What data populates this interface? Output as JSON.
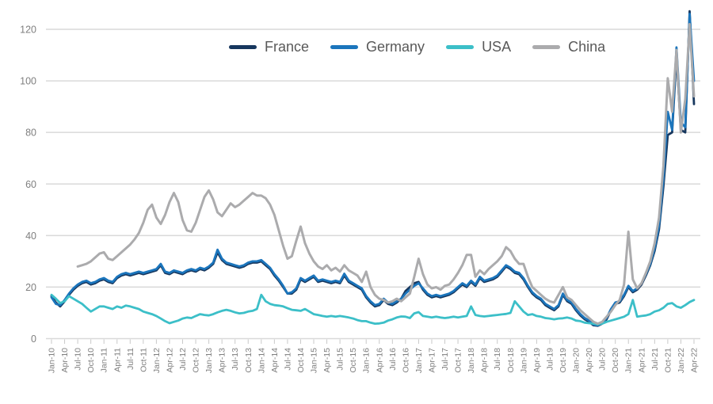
{
  "chart_data": {
    "type": "line",
    "title": "",
    "xlabel": "",
    "ylabel": "",
    "x_unit": "monthly, Jan-2010 through Apr-2022",
    "ylim": [
      0,
      130
    ],
    "yticks": [
      0,
      20,
      40,
      60,
      80,
      100,
      120
    ],
    "grid": "horizontal",
    "legend_position": "top-center",
    "x_tick_labels": [
      "Jan-10",
      "Apr-10",
      "Jul-10",
      "Oct-10",
      "Jan-11",
      "Apr-11",
      "Jul-11",
      "Oct-11",
      "Jan-12",
      "Apr-12",
      "Jul-12",
      "Oct-12",
      "Jan-13",
      "Apr-13",
      "Jul-13",
      "Oct-13",
      "Jan-14",
      "Apr-14",
      "Jul-14",
      "Oct-14",
      "Jan-15",
      "Apr-15",
      "Jul-15",
      "Oct-15",
      "Jan-16",
      "Apr-16",
      "Jul-16",
      "Oct-16",
      "Jan-17",
      "Apr-17",
      "Jul-17",
      "Oct-17",
      "Jan-18",
      "Apr-18",
      "Jul-18",
      "Oct-18",
      "Jan-19",
      "Apr-19",
      "Jul-19",
      "Oct-19",
      "Jan-20",
      "Apr-20",
      "Jul-20",
      "Oct-20",
      "Jan-21",
      "Apr-21",
      "Jul-21",
      "Oct-21",
      "Jan-22",
      "Apr-22"
    ],
    "series": [
      {
        "name": "France",
        "color": "#17375e",
        "values": [
          16.5,
          14,
          12.5,
          14.5,
          17,
          19,
          20.5,
          21.5,
          22,
          21,
          21.5,
          22.5,
          23,
          22,
          21.5,
          23.5,
          24.5,
          25,
          24.5,
          25,
          25.5,
          25,
          25.5,
          26,
          26.5,
          28.5,
          25.5,
          25,
          26,
          25.5,
          25,
          26,
          26.5,
          26,
          27,
          26.5,
          27.5,
          29,
          33.5,
          30.5,
          29,
          28.5,
          28,
          27.5,
          28,
          29,
          29.5,
          29.5,
          30,
          28.5,
          27,
          24.5,
          22.5,
          20,
          17.5,
          17.5,
          19,
          23,
          22,
          23,
          24,
          22,
          22.5,
          22,
          21.5,
          22,
          21.5,
          24.5,
          22,
          21,
          20,
          19,
          16,
          14,
          12.5,
          13,
          15,
          13.5,
          13,
          14,
          15.5,
          18.5,
          20,
          21.5,
          22,
          19,
          17,
          16,
          16.5,
          16,
          16.5,
          17,
          18,
          19.5,
          21,
          20,
          22,
          20.5,
          23.5,
          22,
          22.5,
          23,
          24,
          26,
          28,
          27,
          25.5,
          25,
          23,
          20,
          17.5,
          16,
          15,
          13,
          12,
          11,
          12.5,
          17,
          14.5,
          13.5,
          11,
          9,
          7.5,
          6.5,
          5.2,
          5,
          5.8,
          7.5,
          11,
          13.5,
          14,
          16.5,
          20,
          18,
          19,
          21,
          24.5,
          28.5,
          34,
          42.5,
          59,
          79,
          80,
          110,
          81,
          80,
          127,
          91
        ]
      },
      {
        "name": "Germany",
        "color": "#1b75bc",
        "values": [
          16,
          13.5,
          13,
          15,
          17.5,
          19.5,
          21,
          22,
          22.5,
          21.5,
          22,
          23,
          23.5,
          22.5,
          22,
          24,
          25,
          25.5,
          25,
          25.5,
          26,
          25.5,
          26,
          26.5,
          27,
          29,
          26,
          25.5,
          26.5,
          26,
          25.5,
          26.5,
          27,
          26.5,
          27.5,
          27,
          28,
          29.5,
          34.5,
          31,
          29.5,
          29,
          28.5,
          28,
          28.5,
          29.5,
          30,
          30,
          30.5,
          29,
          27.5,
          25,
          23,
          20.5,
          17.5,
          18,
          19.5,
          23.5,
          22.5,
          23.5,
          24.5,
          22.5,
          23,
          22.5,
          22,
          22.5,
          22,
          25.2,
          22.5,
          21.5,
          20.5,
          19.5,
          16.5,
          14.5,
          13,
          13.5,
          15.5,
          14,
          13.5,
          14.5,
          15.5,
          17.5,
          19,
          20.5,
          21.5,
          19.5,
          17.5,
          16.5,
          17,
          16.5,
          17,
          17.5,
          18.5,
          20,
          21.5,
          20.5,
          22.5,
          21,
          24,
          22.5,
          23,
          23.5,
          24.5,
          26.5,
          28.5,
          27.5,
          26,
          25.5,
          23.5,
          20.5,
          18,
          16.5,
          15.5,
          13.5,
          12.5,
          11.5,
          13,
          17.5,
          15,
          14,
          11.5,
          9.5,
          8,
          7,
          5.5,
          5.2,
          6,
          8,
          11.5,
          14,
          14.5,
          17,
          20.5,
          18.5,
          19.5,
          21.5,
          25,
          29,
          35,
          44,
          62,
          88,
          81,
          113,
          84,
          82,
          126,
          100
        ]
      },
      {
        "name": "USA",
        "color": "#3cbfc8",
        "values": [
          17,
          15.5,
          13.8,
          14.5,
          16.5,
          15.5,
          14.5,
          13.5,
          12,
          10.5,
          11.5,
          12.5,
          12.5,
          12,
          11.5,
          12.5,
          12,
          12.8,
          12.5,
          12,
          11.5,
          10.5,
          10,
          9.5,
          8.8,
          7.8,
          6.8,
          6,
          6.5,
          7,
          7.8,
          8.2,
          8,
          8.8,
          9.5,
          9.2,
          9,
          9.5,
          10.2,
          10.8,
          11.2,
          10.8,
          10.2,
          9.8,
          10,
          10.5,
          10.8,
          11.5,
          17,
          14.5,
          13.5,
          13,
          12.8,
          12.5,
          11.8,
          11.2,
          11,
          10.8,
          11.5,
          10.5,
          9.5,
          9.2,
          8.8,
          8.5,
          8.8,
          8.5,
          8.8,
          8.5,
          8.2,
          7.8,
          7.2,
          6.8,
          6.8,
          6.2,
          5.8,
          5.9,
          6.2,
          7,
          7.5,
          8.2,
          8.6,
          8.5,
          8,
          9.8,
          10.3,
          8.8,
          8.5,
          8.2,
          8.5,
          8.2,
          8,
          8.2,
          8.5,
          8.2,
          8.5,
          8.8,
          12.5,
          9.2,
          8.8,
          8.6,
          8.8,
          9,
          9.2,
          9.4,
          9.6,
          10,
          14.5,
          12.5,
          10.5,
          9.2,
          9.5,
          8.8,
          8.5,
          8,
          7.8,
          7.5,
          7.8,
          7.9,
          8.2,
          7.8,
          7,
          6.8,
          6.2,
          6,
          5.8,
          5.5,
          5.8,
          6.5,
          7,
          7.5,
          8,
          8.5,
          9.5,
          15,
          8.5,
          8.8,
          9,
          9.5,
          10.5,
          11,
          12,
          13.5,
          13.8,
          12.5,
          12,
          13,
          14.2,
          15
        ]
      },
      {
        "name": "China",
        "color": "#ababad",
        "values": [
          null,
          null,
          null,
          null,
          null,
          null,
          28,
          28.5,
          29,
          30,
          31.5,
          33,
          33.5,
          31,
          30.5,
          32,
          33.5,
          35,
          36.5,
          38.5,
          41,
          45,
          50,
          52,
          47,
          44.5,
          48,
          53,
          56.5,
          53,
          46,
          42,
          41.5,
          45,
          50,
          55,
          57.5,
          54,
          49,
          47.5,
          50,
          52.5,
          51,
          52,
          53.5,
          55,
          56.5,
          55.5,
          55.5,
          54.5,
          52,
          48,
          42,
          36,
          31,
          32,
          38,
          43.5,
          37,
          33,
          30,
          28,
          27,
          28.5,
          26.5,
          27.5,
          26,
          28.5,
          26.5,
          25.5,
          24.5,
          22,
          26,
          20,
          17,
          15.5,
          15,
          14,
          14.5,
          15.5,
          14.5,
          16,
          17.5,
          24,
          31,
          25,
          21,
          19.5,
          20,
          19,
          20.5,
          21,
          23,
          25.5,
          28.5,
          32.5,
          32.5,
          24,
          26.5,
          25,
          27,
          28.5,
          30,
          32,
          35.5,
          34,
          31,
          29,
          29,
          24,
          20,
          18.5,
          17,
          15.5,
          14.5,
          14,
          17,
          20,
          16,
          15,
          13,
          11,
          9.5,
          8,
          6.5,
          5.8,
          6.5,
          8.5,
          10.5,
          13,
          15,
          21,
          41.5,
          23,
          19.5,
          21.5,
          25.5,
          30,
          37,
          47,
          67,
          101,
          88,
          112,
          80,
          93,
          122,
          94
        ]
      }
    ],
    "style": {
      "gridline_color": "#d9d9d9",
      "tick_color": "#c9c9c9",
      "axis_label_color": "#7f7f7f",
      "legend_text_color": "#595959",
      "background": "#ffffff"
    }
  }
}
